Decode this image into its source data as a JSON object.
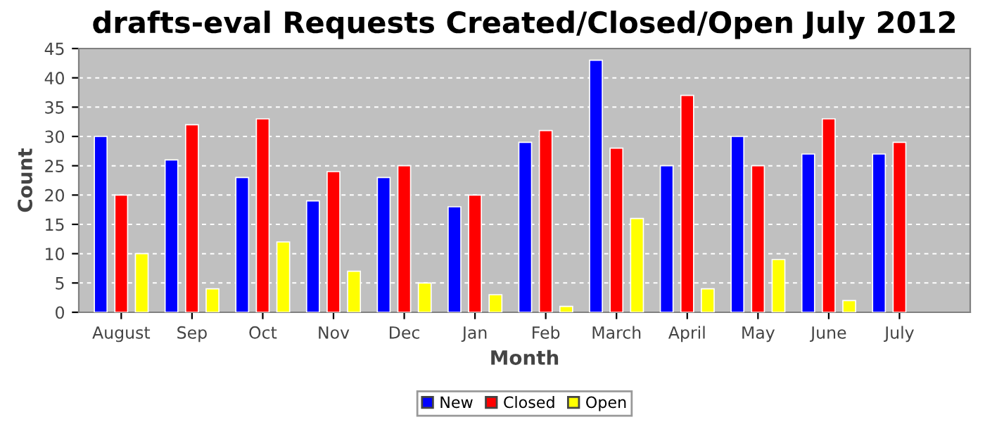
{
  "chart_data": {
    "type": "bar",
    "title": "drafts-eval Requests Created/Closed/Open July 2012",
    "xlabel": "Month",
    "ylabel": "Count",
    "categories": [
      "August",
      "Sep",
      "Oct",
      "Nov",
      "Dec",
      "Jan",
      "Feb",
      "March",
      "April",
      "May",
      "June",
      "July"
    ],
    "series": [
      {
        "name": "New",
        "color": "#0000ff",
        "values": [
          30,
          26,
          23,
          19,
          23,
          18,
          29,
          43,
          25,
          30,
          27,
          27
        ]
      },
      {
        "name": "Closed",
        "color": "#ff0000",
        "values": [
          20,
          32,
          33,
          24,
          25,
          20,
          31,
          28,
          37,
          25,
          33,
          29
        ]
      },
      {
        "name": "Open",
        "color": "#ffff00",
        "values": [
          10,
          4,
          12,
          7,
          5,
          3,
          1,
          16,
          4,
          9,
          2,
          null
        ]
      }
    ],
    "ylim": [
      0,
      45
    ],
    "yticks": [
      0,
      5,
      10,
      15,
      20,
      25,
      30,
      35,
      40,
      45
    ],
    "grid": "y",
    "legend": "bottom"
  }
}
